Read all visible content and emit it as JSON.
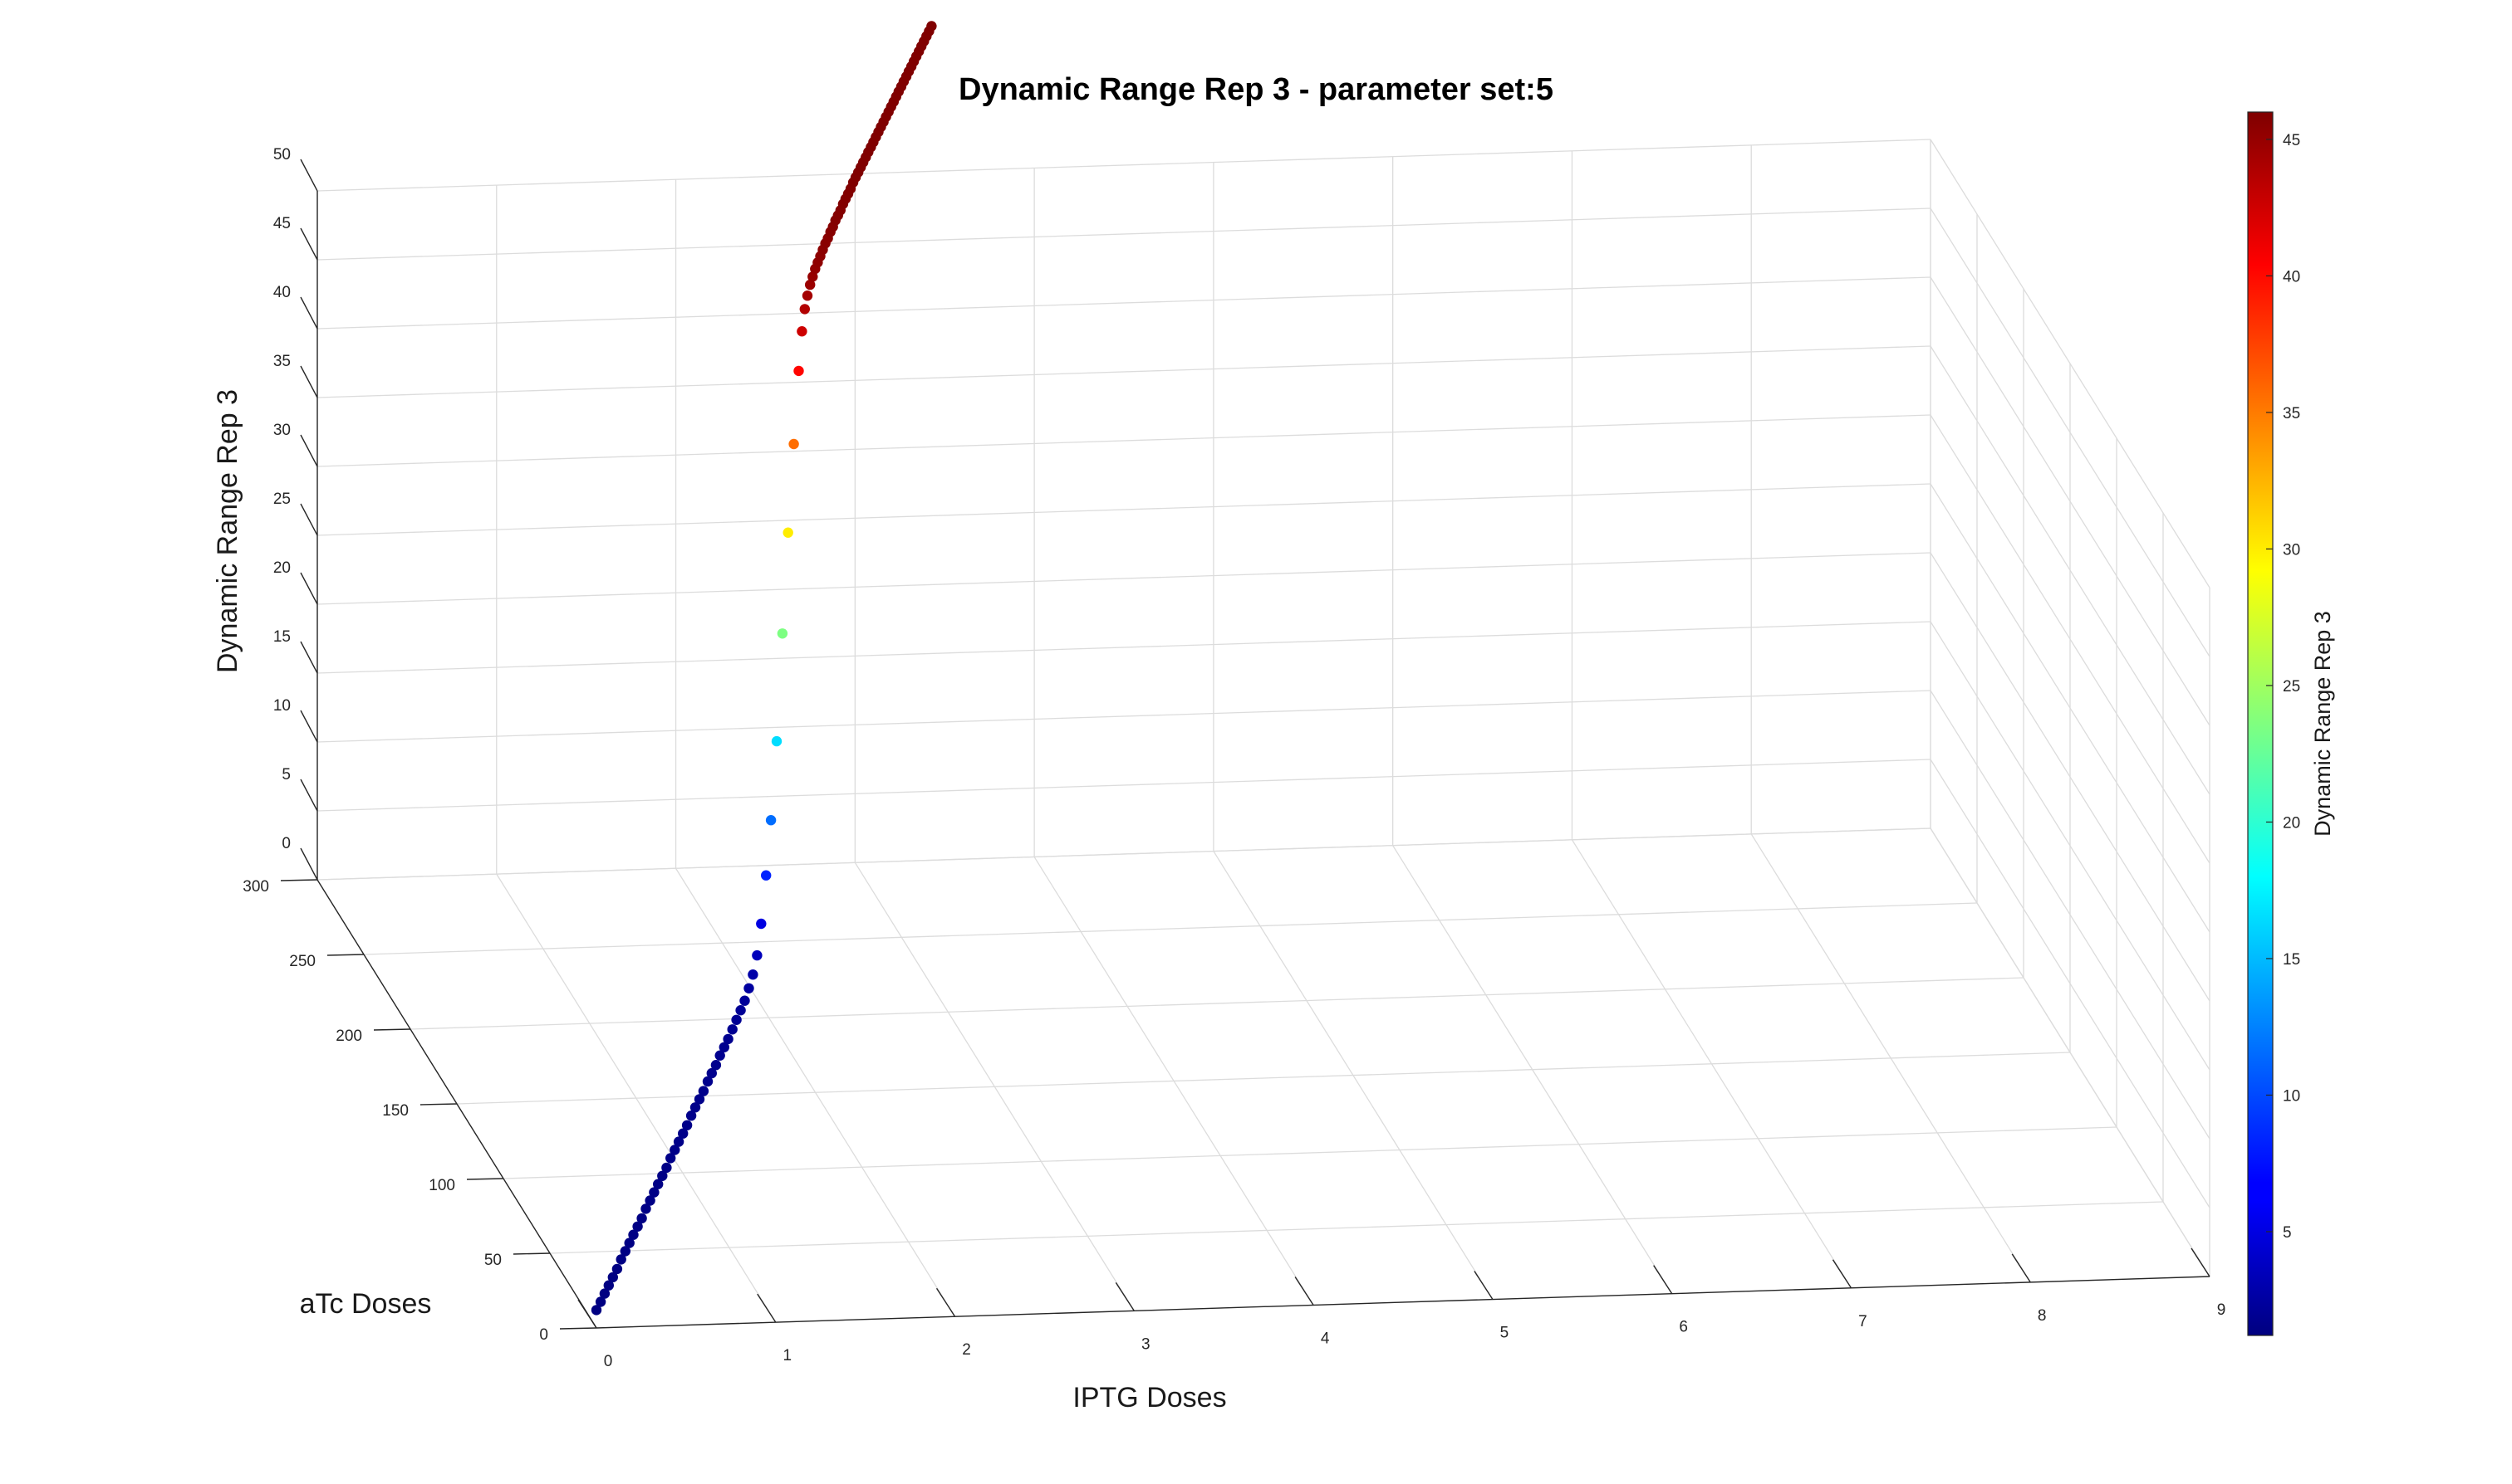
{
  "chart_data": {
    "type": "scatter3d",
    "title": "Dynamic Range Rep 3 - parameter set:5",
    "xlabel": "IPTG Doses",
    "ylabel": "aTc Doses",
    "zlabel": "Dynamic Range Rep 3",
    "colorbar_label": "Dynamic Range Rep 3",
    "colormap": "jet",
    "grid": true,
    "xlim": [
      0,
      9
    ],
    "ylim": [
      0,
      300
    ],
    "zlim": [
      0,
      50
    ],
    "clim": [
      1.2,
      46
    ],
    "xticks": [
      "0",
      "1",
      "2",
      "3",
      "4",
      "5",
      "6",
      "7",
      "8",
      "9"
    ],
    "yticks": [
      "0",
      "50",
      "100",
      "150",
      "200",
      "250",
      "300"
    ],
    "zticks": [
      "0",
      "5",
      "10",
      "15",
      "20",
      "25",
      "30",
      "35",
      "40",
      "45",
      "50"
    ],
    "colorbar_ticks": [
      "5",
      "10",
      "15",
      "20",
      "25",
      "30",
      "35",
      "40",
      "45"
    ],
    "colorbar_tick_values": [
      5,
      10,
      15,
      20,
      25,
      30,
      35,
      40,
      45
    ],
    "points": [
      [
        0.0,
        0.0,
        1.3
      ],
      [
        0.051,
        5.3,
        1.3
      ],
      [
        0.101,
        10.61,
        1.3
      ],
      [
        0.151,
        15.91,
        1.3
      ],
      [
        0.202,
        21.21,
        1.3
      ],
      [
        0.253,
        26.52,
        1.3
      ],
      [
        0.303,
        31.82,
        1.4
      ],
      [
        0.354,
        37.12,
        1.4
      ],
      [
        0.404,
        42.42,
        1.4
      ],
      [
        0.454,
        47.73,
        1.4
      ],
      [
        0.505,
        53.03,
        1.4
      ],
      [
        0.556,
        58.33,
        1.4
      ],
      [
        0.606,
        63.64,
        1.5
      ],
      [
        0.657,
        68.94,
        1.5
      ],
      [
        0.707,
        74.24,
        1.5
      ],
      [
        0.757,
        79.55,
        1.5
      ],
      [
        0.808,
        84.85,
        1.5
      ],
      [
        0.859,
        90.15,
        1.5
      ],
      [
        0.909,
        95.45,
        1.6
      ],
      [
        0.96,
        100.76,
        1.6
      ],
      [
        1.01,
        106.06,
        1.6
      ],
      [
        1.061,
        111.36,
        1.6
      ],
      [
        1.111,
        116.67,
        1.6
      ],
      [
        1.162,
        121.97,
        1.7
      ],
      [
        1.212,
        127.27,
        1.7
      ],
      [
        1.263,
        132.58,
        1.7
      ],
      [
        1.313,
        137.88,
        1.7
      ],
      [
        1.364,
        143.18,
        1.8
      ],
      [
        1.414,
        148.48,
        1.8
      ],
      [
        1.465,
        153.79,
        1.8
      ],
      [
        1.515,
        159.09,
        1.9
      ],
      [
        1.566,
        164.39,
        1.9
      ],
      [
        1.616,
        169.7,
        1.9
      ],
      [
        1.667,
        175.0,
        2.0
      ],
      [
        1.717,
        180.3,
        2.1
      ],
      [
        1.768,
        185.61,
        2.2
      ],
      [
        1.818,
        190.91,
        2.3
      ],
      [
        1.869,
        196.21,
        2.6
      ],
      [
        1.919,
        201.52,
        3.0
      ],
      [
        1.97,
        206.82,
        3.8
      ],
      [
        2.02,
        212.12,
        5.5
      ],
      [
        2.08,
        218.44,
        8.3
      ],
      [
        2.14,
        224.73,
        11.6
      ],
      [
        2.21,
        232.07,
        16.5
      ],
      [
        2.28,
        239.38,
        23.5
      ],
      [
        2.35,
        246.73,
        30.0
      ],
      [
        2.42,
        254.08,
        35.6
      ],
      [
        2.48,
        260.41,
        40.2
      ],
      [
        2.52,
        264.62,
        42.6
      ],
      [
        2.555,
        268.29,
        43.8
      ],
      [
        2.587,
        271.62,
        44.4
      ],
      [
        2.62,
        275.1,
        44.8
      ],
      [
        2.652,
        278.5,
        45.0
      ],
      [
        2.683,
        281.8,
        45.2
      ],
      [
        2.714,
        285.0,
        45.3
      ],
      [
        2.745,
        288.2,
        45.4
      ],
      [
        2.776,
        291.48,
        45.5
      ],
      [
        2.807,
        294.7,
        45.6
      ],
      [
        2.838,
        297.98,
        45.6
      ],
      [
        2.869,
        301.23,
        45.7
      ],
      [
        2.9,
        304.5,
        45.7
      ],
      [
        2.931,
        307.78,
        45.8
      ],
      [
        2.962,
        311.01,
        45.8
      ],
      [
        2.993,
        314.27,
        45.8
      ],
      [
        3.024,
        317.5,
        45.9
      ],
      [
        3.055,
        320.78,
        45.9
      ],
      [
        3.086,
        324.03,
        45.9
      ],
      [
        3.117,
        327.3,
        45.9
      ],
      [
        3.148,
        330.55,
        46.0
      ],
      [
        3.179,
        333.81,
        46.0
      ],
      [
        3.21,
        337.05,
        46.0
      ],
      [
        3.241,
        340.3,
        46.0
      ],
      [
        3.272,
        343.56,
        46.0
      ],
      [
        3.303,
        346.8,
        46.0
      ],
      [
        3.334,
        350.07,
        46.0
      ],
      [
        3.365,
        353.33,
        46.0
      ],
      [
        3.396,
        356.58,
        46.0
      ],
      [
        3.427,
        359.84,
        46.0
      ],
      [
        3.458,
        363.09,
        46.0
      ],
      [
        3.489,
        366.35,
        46.0
      ],
      [
        3.52,
        369.6,
        46.0
      ],
      [
        3.551,
        372.86,
        46.0
      ],
      [
        3.582,
        376.11,
        46.0
      ],
      [
        3.613,
        379.37,
        46.0
      ],
      [
        3.644,
        382.62,
        46.0
      ],
      [
        3.675,
        385.88,
        46.0
      ],
      [
        3.706,
        389.13,
        46.0
      ],
      [
        3.737,
        392.39,
        46.0
      ],
      [
        3.768,
        395.64,
        46.0
      ],
      [
        3.799,
        398.9,
        46.0
      ],
      [
        3.83,
        402.15,
        46.0
      ],
      [
        3.861,
        405.41,
        46.0
      ],
      [
        3.892,
        408.66,
        46.0
      ],
      [
        3.923,
        411.92,
        46.0
      ],
      [
        3.954,
        415.17,
        46.0
      ],
      [
        3.985,
        418.43,
        46.0
      ],
      [
        4.016,
        421.68,
        46.0
      ],
      [
        4.047,
        424.94,
        46.0
      ],
      [
        4.078,
        428.19,
        46.0
      ],
      [
        4.109,
        431.45,
        46.0
      ]
    ]
  }
}
